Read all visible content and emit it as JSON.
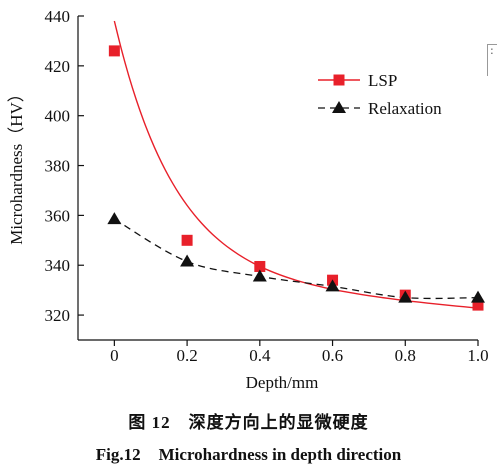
{
  "chart_data": {
    "type": "line",
    "x": [
      0,
      0.2,
      0.4,
      0.6,
      0.8,
      1.0
    ],
    "xlim": [
      -0.1,
      1.0
    ],
    "ylim": [
      310,
      440
    ],
    "xticks": [
      0,
      0.2,
      0.4,
      0.6,
      0.8,
      1.0
    ],
    "xtick_labels": [
      "0",
      "0.2",
      "0.4",
      "0.6",
      "0.8",
      "1.0"
    ],
    "yticks": [
      320,
      340,
      360,
      380,
      400,
      420,
      440
    ],
    "ytick_labels": [
      "320",
      "340",
      "360",
      "380",
      "400",
      "420",
      "440"
    ],
    "xlabel": "Depth/mm",
    "ylabel": "Microhardness（HV）",
    "grid": false,
    "legend_position": "top-right",
    "series": [
      {
        "name": "LSP",
        "values": [
          426,
          350,
          339.5,
          334,
          328,
          324
        ],
        "color": "#e8202a",
        "marker": "square",
        "line": "solid-smooth"
      },
      {
        "name": "Relaxation",
        "values": [
          358.5,
          341.5,
          335.5,
          331.5,
          327,
          327
        ],
        "color": "#111111",
        "marker": "triangle",
        "line": "dashed"
      }
    ]
  },
  "caption_cn": {
    "number": "图 12",
    "text": "深度方向上的显微硬度"
  },
  "caption_en": {
    "number": "Fig.12",
    "text": "Microhardness in depth direction"
  },
  "edge_mark": ":"
}
